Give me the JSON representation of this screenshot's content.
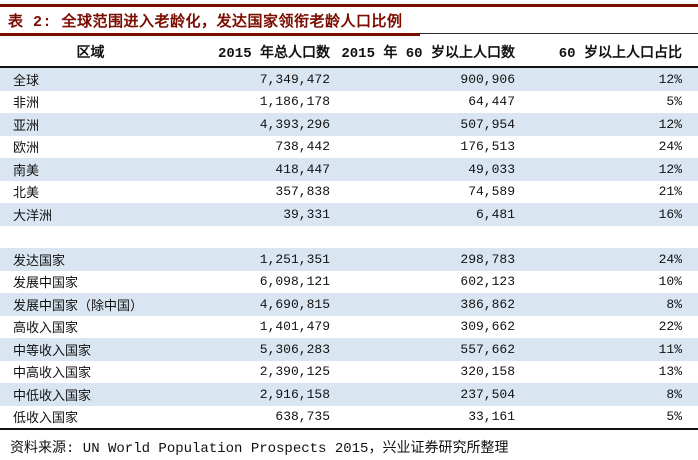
{
  "title": "表 2: 全球范围进入老龄化，发达国家领衔老龄人口比例",
  "table": {
    "headers": [
      "区域",
      "2015 年总人口数",
      "2015 年 60 岁以上人口数",
      "60 岁以上人口占比"
    ],
    "rows": [
      {
        "region": "全球",
        "total": "7,349,472",
        "over60": "900,906",
        "share": "12%"
      },
      {
        "region": "非洲",
        "total": "1,186,178",
        "over60": "64,447",
        "share": "5%"
      },
      {
        "region": "亚洲",
        "total": "4,393,296",
        "over60": "507,954",
        "share": "12%"
      },
      {
        "region": "欧洲",
        "total": "738,442",
        "over60": "176,513",
        "share": "24%"
      },
      {
        "region": "南美",
        "total": "418,447",
        "over60": "49,033",
        "share": "12%"
      },
      {
        "region": "北美",
        "total": "357,838",
        "over60": "74,589",
        "share": "21%"
      },
      {
        "region": "大洋洲",
        "total": "39,331",
        "over60": "6,481",
        "share": "16%"
      },
      {
        "region": "",
        "total": "",
        "over60": "",
        "share": ""
      },
      {
        "region": "发达国家",
        "total": "1,251,351",
        "over60": "298,783",
        "share": "24%"
      },
      {
        "region": "发展中国家",
        "total": "6,098,121",
        "over60": "602,123",
        "share": "10%"
      },
      {
        "region": "发展中国家（除中国）",
        "total": "4,690,815",
        "over60": "386,862",
        "share": "8%"
      },
      {
        "region": "高收入国家",
        "total": "1,401,479",
        "over60": "309,662",
        "share": "22%"
      },
      {
        "region": "中等收入国家",
        "total": "5,306,283",
        "over60": "557,662",
        "share": "11%"
      },
      {
        "region": "中高收入国家",
        "total": "2,390,125",
        "over60": "320,158",
        "share": "13%"
      },
      {
        "region": "中低收入国家",
        "total": "2,916,158",
        "over60": "237,504",
        "share": "8%"
      },
      {
        "region": "低收入国家",
        "total": "638,735",
        "over60": "33,161",
        "share": "5%"
      }
    ]
  },
  "footer": "资料来源: UN World Population Prospects 2015，兴业证券研究所整理",
  "colors": {
    "accent_dark_red": "#7A0C00",
    "row_alt_blue": "#D9E6F2",
    "rule_dark": "#111111",
    "rule_thin": "#2B2B2B"
  }
}
